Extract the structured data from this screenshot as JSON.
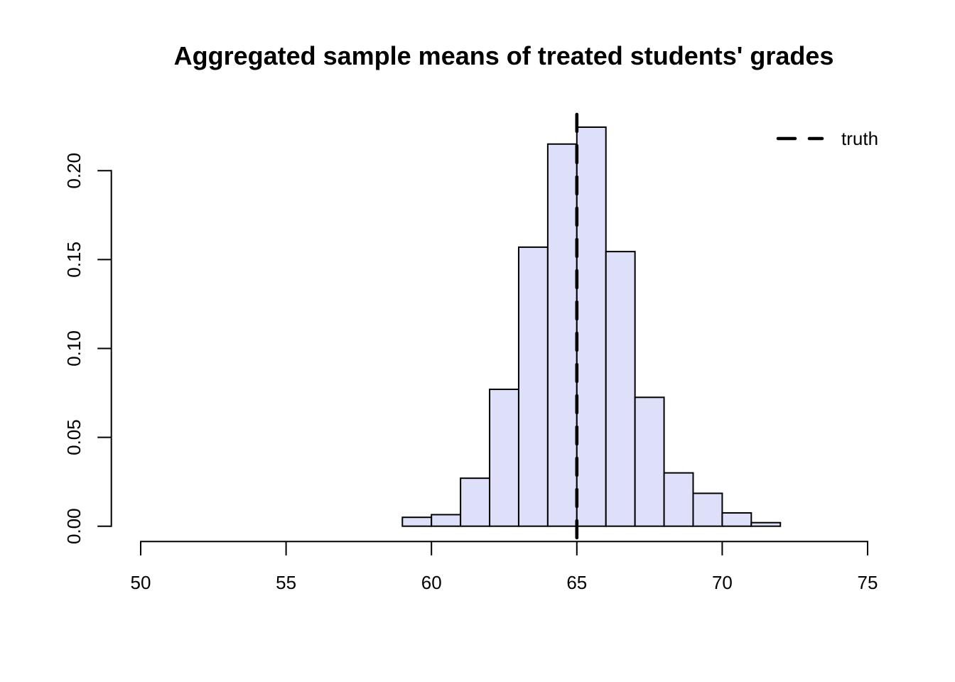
{
  "chart_data": {
    "type": "bar",
    "subtype": "histogram-density",
    "title": "Aggregated sample means of treated students' grades",
    "xlabel": "",
    "ylabel": "",
    "grid": false,
    "x_axis": {
      "min": 50,
      "max": 75,
      "ticks": [
        50,
        55,
        60,
        65,
        70,
        75
      ]
    },
    "y_axis": {
      "min": 0.0,
      "max": 0.2,
      "ticks": [
        0,
        0.05,
        0.1,
        0.15,
        0.2
      ],
      "tick_labels": [
        "0.00",
        "0.05",
        "0.10",
        "0.15",
        "0.20"
      ]
    },
    "bins": {
      "start": 59,
      "width": 1,
      "edges": [
        59,
        60,
        61,
        62,
        63,
        64,
        65,
        66,
        67,
        68,
        69,
        70,
        71,
        72
      ],
      "densities": [
        0.005,
        0.0065,
        0.027,
        0.077,
        0.157,
        0.215,
        0.2245,
        0.1545,
        0.0725,
        0.03,
        0.0185,
        0.0075,
        0.002
      ]
    },
    "truth_line": {
      "x": 65,
      "label": "truth",
      "line_style": "dashed"
    },
    "legend": {
      "position": "top-right",
      "entries": [
        {
          "label": "truth",
          "line_style": "dashed"
        }
      ]
    },
    "colors": {
      "bar_fill": "#dee0fa",
      "bar_border": "#000000",
      "axis": "#000000",
      "truth_line": "#000000",
      "text": "#000000",
      "background": "#ffffff"
    }
  }
}
